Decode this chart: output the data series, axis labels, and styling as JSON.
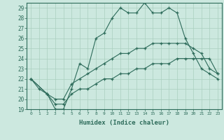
{
  "xlabel": "Humidex (Indice chaleur)",
  "bg_color": "#cce8df",
  "grid_color": "#aacfbf",
  "line_color": "#2d6b5a",
  "xlim": [
    -0.5,
    23.5
  ],
  "ylim": [
    19,
    29.5
  ],
  "xticks": [
    0,
    1,
    2,
    3,
    4,
    5,
    6,
    7,
    8,
    9,
    10,
    11,
    12,
    13,
    14,
    15,
    16,
    17,
    18,
    19,
    20,
    21,
    22,
    23
  ],
  "yticks": [
    19,
    20,
    21,
    22,
    23,
    24,
    25,
    26,
    27,
    28,
    29
  ],
  "series": [
    {
      "x": [
        0,
        1,
        2,
        3,
        4,
        5,
        6,
        7,
        8,
        9,
        10,
        11,
        12,
        13,
        14,
        15,
        16,
        17,
        18,
        19,
        20,
        21,
        22,
        23
      ],
      "y": [
        22,
        21,
        20.5,
        19,
        19,
        21,
        23.5,
        23,
        26,
        26.5,
        28,
        29,
        28.5,
        28.5,
        29.5,
        28.5,
        28.5,
        29,
        28.5,
        26,
        24.5,
        23,
        22.5,
        22
      ]
    },
    {
      "x": [
        0,
        2,
        3,
        4,
        5,
        6,
        7,
        8,
        9,
        10,
        11,
        12,
        13,
        14,
        15,
        16,
        17,
        18,
        19,
        20,
        21,
        22,
        23
      ],
      "y": [
        22,
        20.5,
        20,
        20,
        21.5,
        22,
        22.5,
        23,
        23.5,
        24,
        24.5,
        24.5,
        25,
        25,
        25.5,
        25.5,
        25.5,
        25.5,
        25.5,
        25,
        24.5,
        23,
        22.5
      ]
    },
    {
      "x": [
        0,
        2,
        3,
        4,
        5,
        6,
        7,
        8,
        9,
        10,
        11,
        12,
        13,
        14,
        15,
        16,
        17,
        18,
        19,
        20,
        21,
        22,
        23
      ],
      "y": [
        22,
        20.5,
        19.5,
        19.5,
        20.5,
        21,
        21,
        21.5,
        22,
        22,
        22.5,
        22.5,
        23,
        23,
        23.5,
        23.5,
        23.5,
        24,
        24,
        24,
        24,
        24,
        22.5
      ]
    }
  ]
}
